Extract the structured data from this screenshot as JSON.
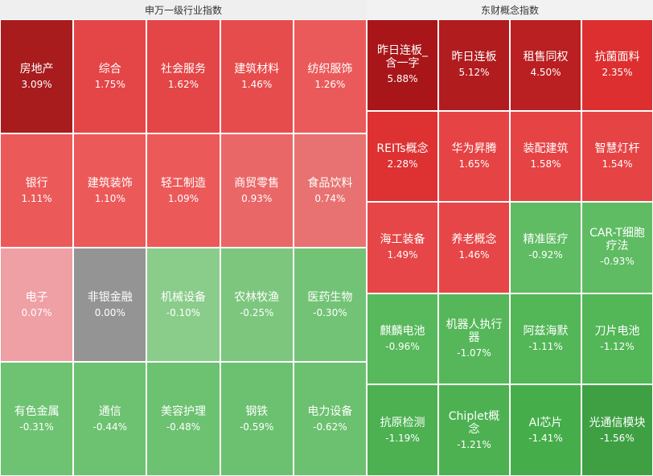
{
  "left_panel": {
    "title": "申万一级行业指数",
    "tiles": [
      {
        "name": "房地产",
        "change": "3.09%",
        "color": "#a81c1e"
      },
      {
        "name": "综合",
        "change": "1.75%",
        "color": "#e44547"
      },
      {
        "name": "社会服务",
        "change": "1.62%",
        "color": "#e44547"
      },
      {
        "name": "建筑材料",
        "change": "1.46%",
        "color": "#e74c4c"
      },
      {
        "name": "纺织服饰",
        "change": "1.26%",
        "color": "#eb5a5a"
      },
      {
        "name": "银行",
        "change": "1.11%",
        "color": "#ec5959"
      },
      {
        "name": "建筑装饰",
        "change": "1.10%",
        "color": "#ec5959"
      },
      {
        "name": "轻工制造",
        "change": "1.09%",
        "color": "#ec5959"
      },
      {
        "name": "商贸零售",
        "change": "0.93%",
        "color": "#ea6767"
      },
      {
        "name": "食品饮料",
        "change": "0.74%",
        "color": "#e87272"
      },
      {
        "name": "电子",
        "change": "0.07%",
        "color": "#eea0a5"
      },
      {
        "name": "非银金融",
        "change": "0.00%",
        "color": "#949494"
      },
      {
        "name": "机械设备",
        "change": "-0.10%",
        "color": "#8acc8a"
      },
      {
        "name": "农林牧渔",
        "change": "-0.25%",
        "color": "#7cc67e"
      },
      {
        "name": "医药生物",
        "change": "-0.30%",
        "color": "#73c376"
      },
      {
        "name": "有色金属",
        "change": "-0.31%",
        "color": "#6ec372"
      },
      {
        "name": "通信",
        "change": "-0.44%",
        "color": "#6cc270"
      },
      {
        "name": "美容护理",
        "change": "-0.48%",
        "color": "#6cc270"
      },
      {
        "name": "钢铁",
        "change": "-0.59%",
        "color": "#6bc16f"
      },
      {
        "name": "电力设备",
        "change": "-0.62%",
        "color": "#6bc16f"
      }
    ]
  },
  "right_panel": {
    "title": "东财概念指数",
    "tiles": [
      {
        "name": "昨日连板_含一字",
        "change": "5.88%",
        "color": "#a8161a"
      },
      {
        "name": "昨日连板",
        "change": "5.12%",
        "color": "#b11c1f"
      },
      {
        "name": "租售同权",
        "change": "4.50%",
        "color": "#ba1f21"
      },
      {
        "name": "抗菌面料",
        "change": "2.35%",
        "color": "#dd2f30"
      },
      {
        "name": "REITs概念",
        "change": "2.28%",
        "color": "#dd3132"
      },
      {
        "name": "华为昇腾",
        "change": "1.65%",
        "color": "#e64345"
      },
      {
        "name": "装配建筑",
        "change": "1.58%",
        "color": "#e64345"
      },
      {
        "name": "智慧灯杆",
        "change": "1.54%",
        "color": "#e64345"
      },
      {
        "name": "海工装备",
        "change": "1.49%",
        "color": "#e64647"
      },
      {
        "name": "养老概念",
        "change": "1.46%",
        "color": "#e64647"
      },
      {
        "name": "精准医疗",
        "change": "-0.92%",
        "color": "#5fbc63"
      },
      {
        "name": "CAR-T细胞疗法",
        "change": "-0.93%",
        "color": "#5fbc63"
      },
      {
        "name": "麒麟电池",
        "change": "-0.96%",
        "color": "#57b95b"
      },
      {
        "name": "机器人执行器",
        "change": "-1.07%",
        "color": "#55b759"
      },
      {
        "name": "阿兹海默",
        "change": "-1.11%",
        "color": "#53b657"
      },
      {
        "name": "刀片电池",
        "change": "-1.12%",
        "color": "#53b657"
      },
      {
        "name": "抗原检测",
        "change": "-1.19%",
        "color": "#4db152"
      },
      {
        "name": "Chiplet概念",
        "change": "-1.21%",
        "color": "#4db152"
      },
      {
        "name": "AI芯片",
        "change": "-1.41%",
        "color": "#45ad4a"
      },
      {
        "name": "光通信模块",
        "change": "-1.56%",
        "color": "#3ea043"
      }
    ]
  }
}
